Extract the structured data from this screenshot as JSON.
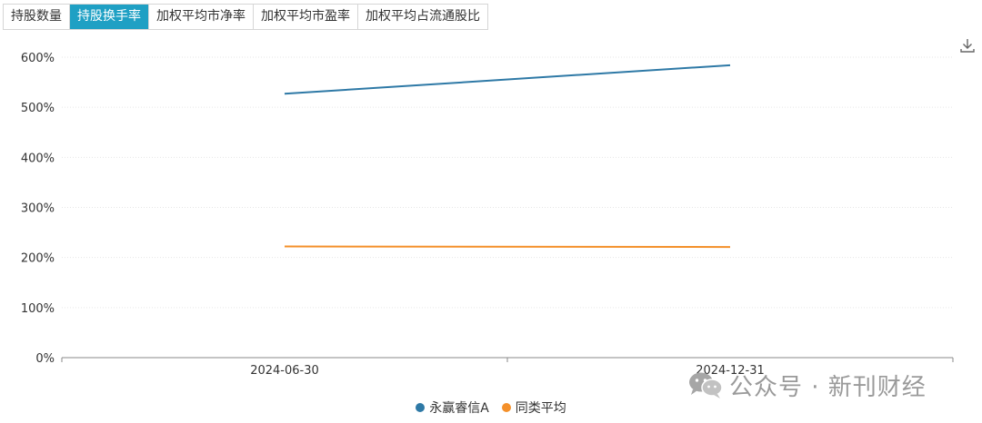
{
  "tabs": [
    {
      "label": "持股数量",
      "active": false
    },
    {
      "label": "持股换手率",
      "active": true
    },
    {
      "label": "加权平均市净率",
      "active": false
    },
    {
      "label": "加权平均市盈率",
      "active": false
    },
    {
      "label": "加权平均占流通股比",
      "active": false
    }
  ],
  "toolbar": {
    "download_icon": "download-icon"
  },
  "colors": {
    "accent": "#1fa0c4",
    "series1": "#2e79a6",
    "series2": "#f4902a"
  },
  "chart_data": {
    "type": "line",
    "x": [
      "2024-06-30",
      "2024-12-31"
    ],
    "series": [
      {
        "name": "永赢睿信A",
        "values": [
          527,
          584
        ],
        "color": "#2e79a6"
      },
      {
        "name": "同类平均",
        "values": [
          222,
          221
        ],
        "color": "#f4902a"
      }
    ],
    "ylim": [
      0,
      600
    ],
    "yticks": [
      "0%",
      "100%",
      "200%",
      "300%",
      "400%",
      "500%",
      "600%"
    ],
    "y_unit": "%",
    "grid": true,
    "legend": "bottom-center"
  },
  "watermark": {
    "text": "公众号 · 新刊财经",
    "icon": "wechat-icon"
  }
}
